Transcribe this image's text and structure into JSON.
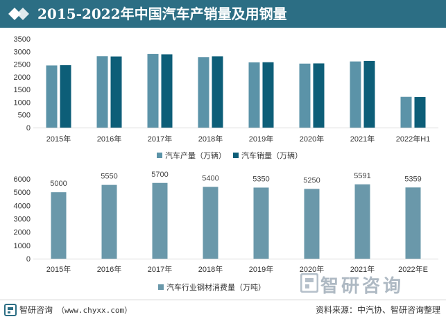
{
  "title": "2015-2022年中国汽车产销量及用钢量",
  "footer": {
    "brand": "智研咨询",
    "site": "（www.chyxx.com）",
    "source": "资料来源：中汽协、智研咨询整理"
  },
  "watermark": {
    "text": "智研咨询"
  },
  "colors": {
    "header": "#2c6e84",
    "production": "#5b93a8",
    "sales": "#0d5e78",
    "steel": "#6a98aa"
  },
  "chart_data": [
    {
      "type": "bar",
      "categories": [
        "2015年",
        "2016年",
        "2017年",
        "2018年",
        "2019年",
        "2020年",
        "2021年",
        "2022年H1"
      ],
      "series": [
        {
          "name": "汽车产量（万辆）",
          "values": [
            2450,
            2812,
            2902,
            2781,
            2572,
            2523,
            2608,
            1212
          ]
        },
        {
          "name": "汽车销量（万辆）",
          "values": [
            2460,
            2803,
            2888,
            2808,
            2577,
            2531,
            2628,
            1205
          ]
        }
      ],
      "ylim": [
        0,
        3500
      ],
      "yticks": [
        0,
        500,
        1000,
        1500,
        2000,
        2500,
        3000,
        3500
      ],
      "grid": false,
      "legend": "bottom"
    },
    {
      "type": "bar",
      "categories": [
        "2015年",
        "2016年",
        "2017年",
        "2018年",
        "2019年",
        "2020年",
        "2021年",
        "2022年E"
      ],
      "series": [
        {
          "name": "汽车行业钢材消费量（万吨）",
          "values": [
            5000,
            5550,
            5700,
            5400,
            5350,
            5250,
            5591,
            5359
          ]
        }
      ],
      "data_labels": [
        "5000",
        "5550",
        "5700",
        "5400",
        "5350",
        "5250",
        "5591",
        "5359"
      ],
      "ylim": [
        0,
        6000
      ],
      "yticks": [
        0,
        1000,
        2000,
        3000,
        4000,
        5000,
        6000
      ],
      "grid": false,
      "legend": "bottom"
    }
  ]
}
